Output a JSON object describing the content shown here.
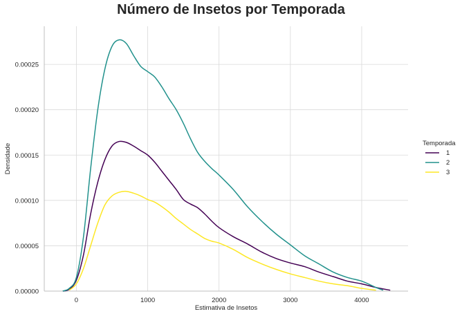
{
  "chart_data": {
    "type": "line",
    "title": "Número de Insetos por Temporada",
    "xlabel": "Estimativa de Insetos",
    "ylabel": "Densidade",
    "xlim": [
      -450,
      4650
    ],
    "ylim": [
      0,
      0.000292
    ],
    "x_ticks": [
      0,
      1000,
      2000,
      3000,
      4000
    ],
    "x_tick_labels": [
      "0",
      "1000",
      "2000",
      "3000",
      "4000"
    ],
    "y_ticks": [
      0,
      5e-05,
      0.0001,
      0.00015,
      0.0002,
      0.00025
    ],
    "y_tick_labels": [
      "0.00000",
      "0.00005",
      "0.00010",
      "0.00015",
      "0.00020",
      "0.00025"
    ],
    "grid": true,
    "legend": {
      "title": "Temporada",
      "placement": "right"
    },
    "series": [
      {
        "name": "1",
        "color": "#440154",
        "x": [
          -190,
          -100,
          0,
          100,
          200,
          300,
          400,
          500,
          600,
          700,
          800,
          900,
          1000,
          1100,
          1200,
          1300,
          1400,
          1500,
          1600,
          1700,
          1800,
          1900,
          2000,
          2200,
          2400,
          2600,
          2800,
          3000,
          3200,
          3400,
          3600,
          3800,
          4000,
          4200,
          4400
        ],
        "y": [
          0,
          2e-06,
          1.2e-05,
          4e-05,
          8.5e-05,
          0.00012,
          0.000145,
          0.00016,
          0.000165,
          0.000164,
          0.00016,
          0.000155,
          0.00015,
          0.000142,
          0.000132,
          0.000122,
          0.000112,
          0.000101,
          9.6e-05,
          9.2e-05,
          8.5e-05,
          7.7e-05,
          7e-05,
          6e-05,
          5.2e-05,
          4.3e-05,
          3.6e-05,
          3.1e-05,
          2.7e-05,
          2.1e-05,
          1.6e-05,
          1.1e-05,
          8e-06,
          4e-06,
          1e-06
        ]
      },
      {
        "name": "2",
        "color": "#21918c",
        "x": [
          -190,
          -100,
          0,
          100,
          200,
          300,
          400,
          500,
          600,
          700,
          800,
          900,
          1000,
          1100,
          1200,
          1300,
          1400,
          1500,
          1600,
          1700,
          1800,
          1900,
          2000,
          2200,
          2400,
          2600,
          2800,
          3000,
          3200,
          3400,
          3600,
          3800,
          4000,
          4200,
          4300
        ],
        "y": [
          0,
          3e-06,
          1.5e-05,
          6e-05,
          0.000135,
          0.0002,
          0.000245,
          0.00027,
          0.000277,
          0.000273,
          0.00026,
          0.000248,
          0.000242,
          0.000236,
          0.000225,
          0.000212,
          0.0002,
          0.000185,
          0.000168,
          0.000153,
          0.000143,
          0.000135,
          0.000128,
          0.000112,
          9.3e-05,
          7.7e-05,
          6.3e-05,
          5.1e-05,
          3.9e-05,
          3e-05,
          2.1e-05,
          1.5e-05,
          1.1e-05,
          4e-06,
          1e-06
        ]
      },
      {
        "name": "3",
        "color": "#fde725",
        "x": [
          -100,
          0,
          100,
          200,
          300,
          400,
          500,
          600,
          700,
          800,
          900,
          1000,
          1100,
          1200,
          1300,
          1400,
          1500,
          1600,
          1700,
          1800,
          1900,
          2000,
          2200,
          2400,
          2600,
          2800,
          3000,
          3200,
          3400,
          3600,
          3800,
          4000,
          4200
        ],
        "y": [
          1e-06,
          8e-06,
          2.5e-05,
          5e-05,
          7.5e-05,
          9.5e-05,
          0.000105,
          0.000109,
          0.00011,
          0.000108,
          0.000105,
          0.000101,
          9.8e-05,
          9.3e-05,
          8.7e-05,
          8e-05,
          7.4e-05,
          6.8e-05,
          6.3e-05,
          5.8e-05,
          5.5e-05,
          5.3e-05,
          4.6e-05,
          3.7e-05,
          3e-05,
          2.4e-05,
          1.9e-05,
          1.5e-05,
          1.1e-05,
          8e-06,
          6e-06,
          3e-06,
          1e-06
        ]
      }
    ]
  }
}
